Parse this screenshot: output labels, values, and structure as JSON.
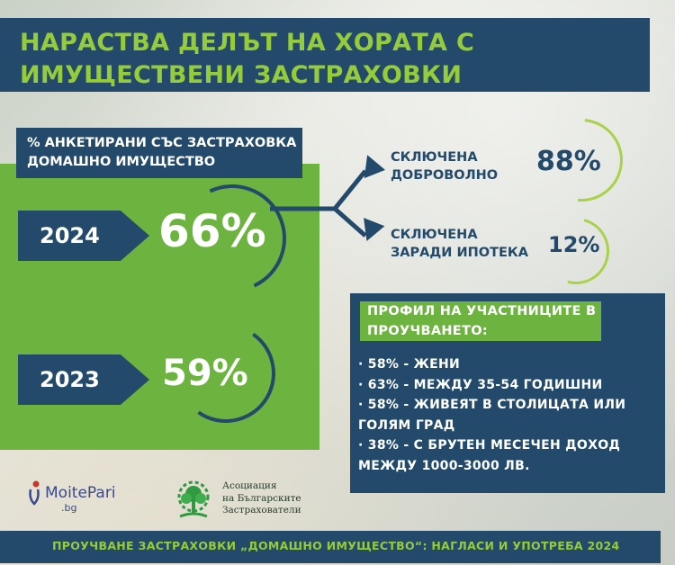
{
  "title": "НАРАСТВА ДЕЛЪТ НА ХОРАТА С ИМУЩЕСТВЕНИ ЗАСТРАХОВКИ",
  "panel": {
    "label": "% АНКЕТИРАНИ СЪС  ЗАСТРАХОВКА ДОМАШНО ИМУЩЕСТВО",
    "rows": [
      {
        "year": "2024",
        "value": "66%"
      },
      {
        "year": "2023",
        "value": "59%"
      }
    ]
  },
  "breakdown": {
    "voluntary": {
      "label_line1": "СКЛЮЧЕНА",
      "label_line2": "ДОБРОВОЛНО",
      "value": "88%"
    },
    "mortgage": {
      "label_line1": "СКЛЮЧЕНА",
      "label_line2": "ЗАРАДИ ИПОТЕКА",
      "value": "12%"
    }
  },
  "profile": {
    "title": "ПРОФИЛ НА УЧАСТНИЦИТЕ В ПРОУЧВАНЕТО:",
    "items": [
      "· 58% - ЖЕНИ",
      "· 63% - МЕЖДУ 35-54 ГОДИШНИ",
      "· 58% - ЖИВЕЯТ В СТОЛИЦАТА ИЛИ ГОЛЯМ ГРАД",
      "  · 38% - С БРУТЕН МЕСЕЧЕН ДОХОД МЕЖДУ 1000-3000 ЛВ."
    ]
  },
  "logos": {
    "moitepari": "MoitePari",
    "moitepari_tld": ".bg",
    "association_line1": "Асоциация",
    "association_line2": "на Българските",
    "association_line3": "Застрахователи"
  },
  "footer": "ПРОУЧВАНЕ  ЗАСТРАХОВКИ „ДОМАШНО ИМУЩЕСТВО“: НАГЛАСИ И УПОТРЕБА 2024",
  "colors": {
    "navy": "#234a6b",
    "green": "#6cb33f",
    "lime": "#95cc3a"
  }
}
